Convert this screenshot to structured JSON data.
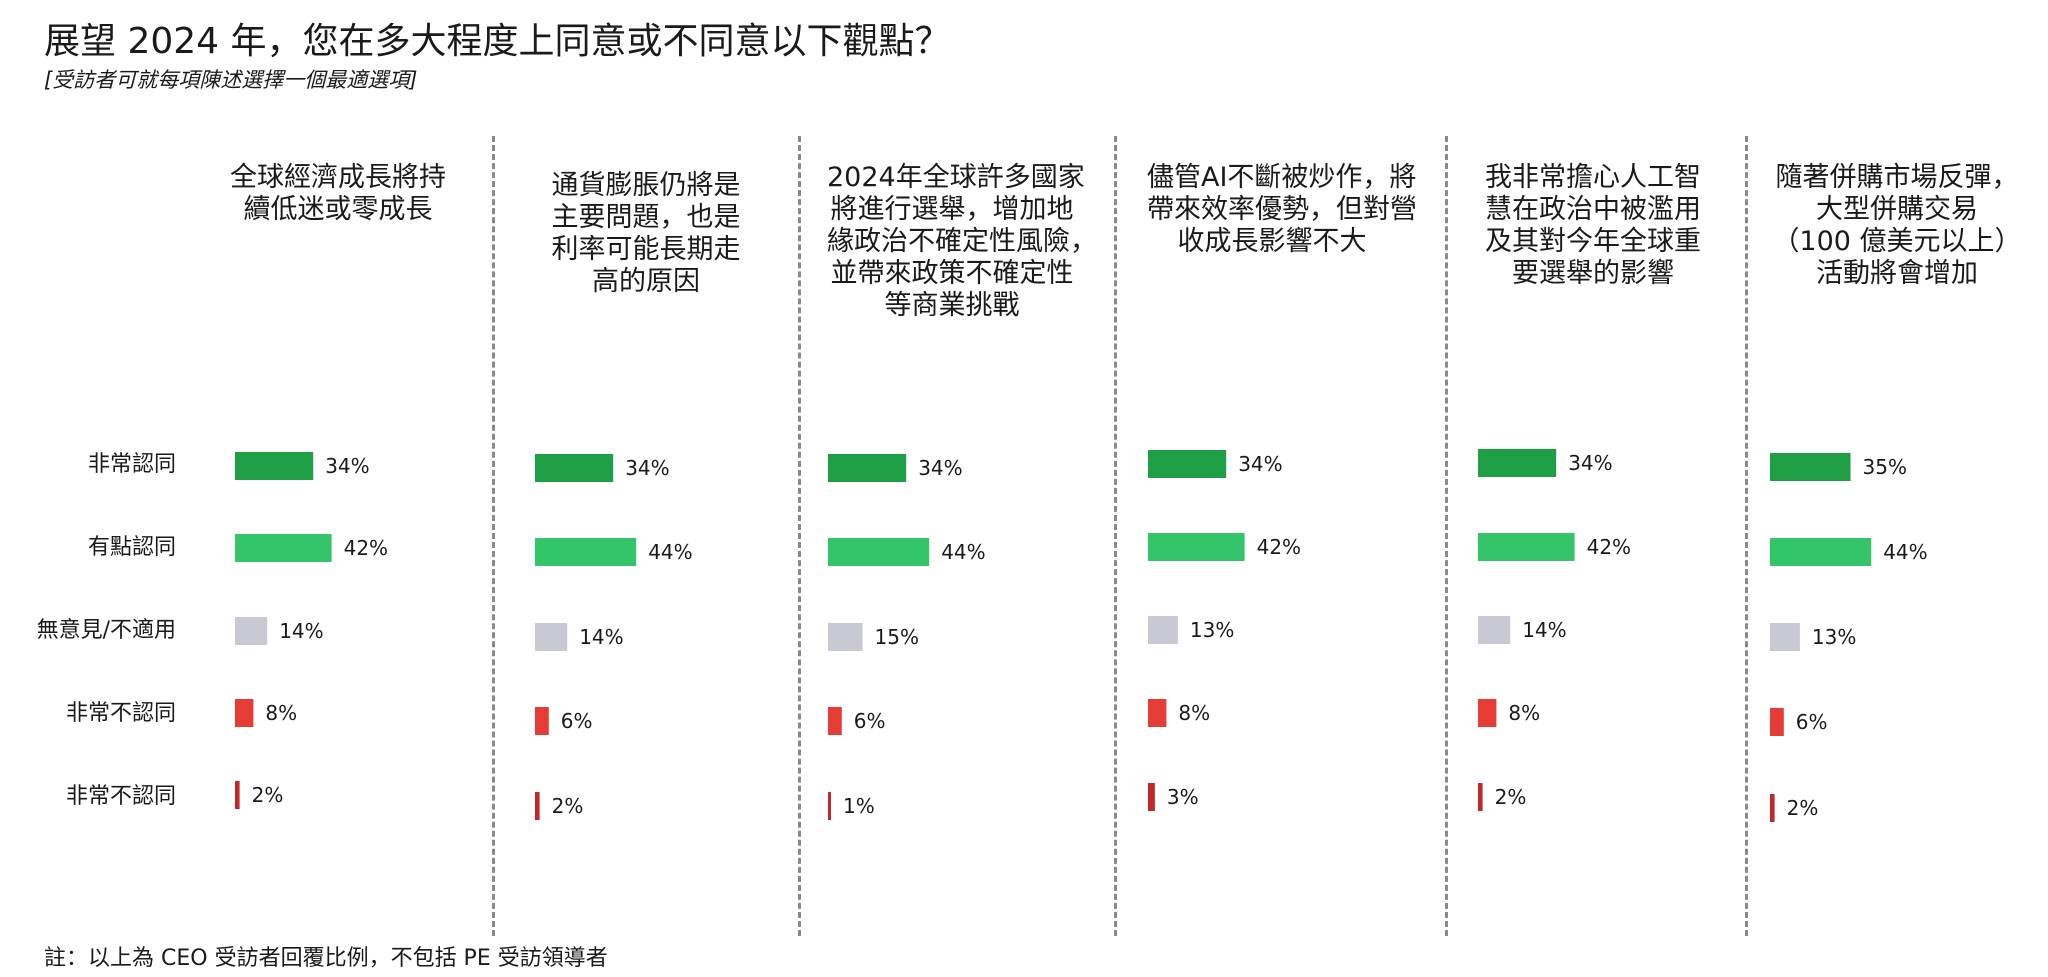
{
  "chart_data": {
    "type": "bar",
    "title": "展望 2024 年，您在多大程度上同意或不同意以下觀點？",
    "subtitle": "[受訪者可就每項陳述選擇一個最適選項]",
    "footnote": "註：以上為 CEO 受訪者回覆比例，不包括 PE 受訪領導者",
    "categories": [
      "非常認同",
      "有點認同",
      "無意見/不適用",
      "非常不認同",
      "非常不認同"
    ],
    "colors": [
      "#1e9e45",
      "#34c469",
      "#c8c9d2",
      "#e63c36",
      "#c2282a"
    ],
    "statements": [
      {
        "lines": [
          "全球經濟成長將持",
          "續低迷或零成長"
        ],
        "values": [
          34,
          42,
          14,
          8,
          2
        ],
        "labels": [
          "34%",
          "42%",
          "14%",
          "8%",
          "2%"
        ]
      },
      {
        "lines": [
          "通貨膨脹仍將是",
          "主要問題，也是",
          "利率可能長期走",
          "高的原因"
        ],
        "values": [
          34,
          44,
          14,
          6,
          2
        ],
        "labels": [
          "34%",
          "44%",
          "14%",
          "6%",
          "2%"
        ]
      },
      {
        "lines": [
          "2024年全球許多國家",
          "將進行選舉，增加地",
          "緣政治不確定性風險，",
          "並帶來政策不確定性",
          "等商業挑戰"
        ],
        "values": [
          34,
          44,
          15,
          6,
          1
        ],
        "labels": [
          "34%",
          "44%",
          "15%",
          "6%",
          "1%"
        ]
      },
      {
        "lines": [
          "儘管AI不斷被炒作，將",
          "帶來效率優勢，但對營",
          "收成長影響不大"
        ],
        "values": [
          34,
          42,
          13,
          8,
          3
        ],
        "labels": [
          "34%",
          "42%",
          "13%",
          "8%",
          "3%"
        ]
      },
      {
        "lines": [
          "我非常擔心人工智",
          "慧在政治中被濫用",
          "及其對今年全球重",
          "要選舉的影響"
        ],
        "values": [
          34,
          42,
          14,
          8,
          2
        ],
        "labels": [
          "34%",
          "42%",
          "14%",
          "8%",
          "2%"
        ]
      },
      {
        "lines": [
          "隨著併購市場反彈，",
          "大型併購交易",
          "（100 億美元以上）",
          "活動將會增加"
        ],
        "values": [
          35,
          44,
          13,
          6,
          2
        ],
        "labels": [
          "35%",
          "44%",
          "13%",
          "6%",
          "2%"
        ]
      }
    ]
  }
}
